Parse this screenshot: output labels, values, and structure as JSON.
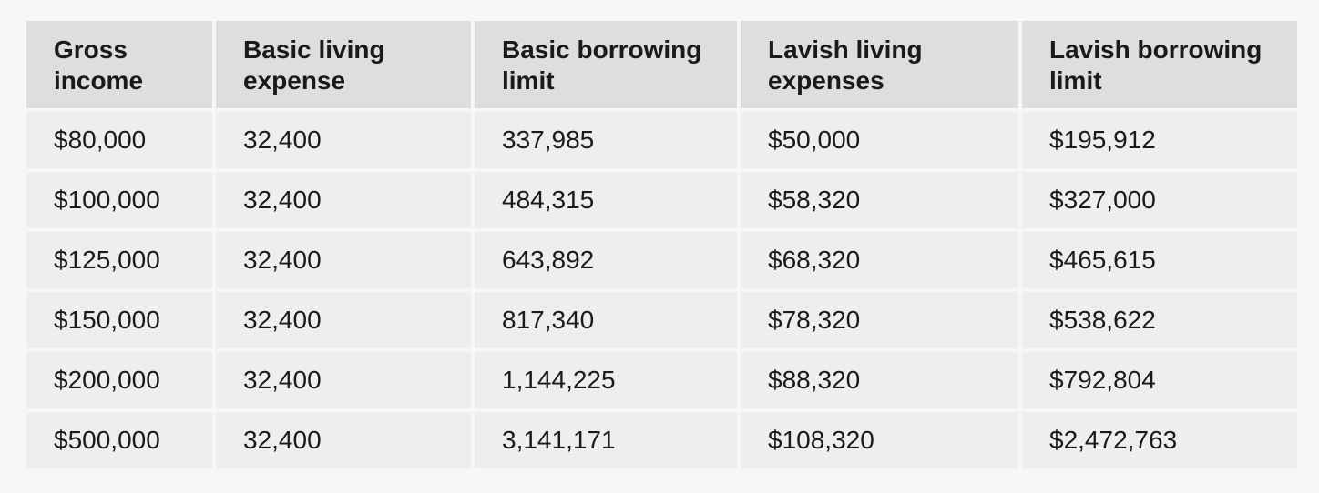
{
  "table": {
    "headers": [
      "Gross income",
      "Basic living expense",
      "Basic borrowing limit",
      "Lavish living expenses",
      "Lavish borrowing limit"
    ],
    "rows": [
      [
        "$80,000",
        "32,400",
        "337,985",
        "$50,000",
        "$195,912"
      ],
      [
        "$100,000",
        "32,400",
        "484,315",
        "$58,320",
        "$327,000"
      ],
      [
        "$125,000",
        "32,400",
        "643,892",
        "$68,320",
        "$465,615"
      ],
      [
        "$150,000",
        "32,400",
        "817,340",
        "$78,320",
        "$538,622"
      ],
      [
        "$200,000",
        "32,400",
        "1,144,225",
        "$88,320",
        "$792,804"
      ],
      [
        "$500,000",
        "32,400",
        "3,141,171",
        "$108,320",
        "$2,472,763"
      ]
    ]
  }
}
